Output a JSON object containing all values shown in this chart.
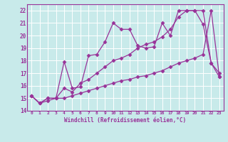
{
  "background_color": "#c8eaea",
  "grid_color": "#b0d8d8",
  "line_color": "#993399",
  "xlabel": "Windchill (Refroidissement éolien,°C)",
  "xlim": [
    -0.5,
    23.5
  ],
  "ylim": [
    14,
    22.5
  ],
  "yticks": [
    14,
    15,
    16,
    17,
    18,
    19,
    20,
    21,
    22
  ],
  "xticks": [
    0,
    1,
    2,
    3,
    4,
    5,
    6,
    7,
    8,
    9,
    10,
    11,
    12,
    13,
    14,
    15,
    16,
    17,
    18,
    19,
    20,
    21,
    22,
    23
  ],
  "series1": [
    15.2,
    14.6,
    14.8,
    15.0,
    17.9,
    15.8,
    15.9,
    18.4,
    18.5,
    19.5,
    21.0,
    20.5,
    20.5,
    19.2,
    19.0,
    19.1,
    21.0,
    20.0,
    22.0,
    22.0,
    22.0,
    20.9,
    17.8,
    17.0
  ],
  "series2": [
    15.2,
    14.6,
    15.0,
    15.0,
    15.8,
    15.5,
    16.2,
    16.5,
    17.0,
    17.5,
    18.0,
    18.2,
    18.5,
    19.0,
    19.3,
    19.5,
    19.9,
    20.5,
    21.5,
    22.0,
    22.0,
    22.0,
    17.8,
    16.7
  ],
  "series3": [
    15.2,
    14.6,
    15.0,
    15.0,
    15.0,
    15.2,
    15.4,
    15.6,
    15.8,
    16.0,
    16.2,
    16.4,
    16.5,
    16.7,
    16.8,
    17.0,
    17.2,
    17.5,
    17.8,
    18.0,
    18.2,
    18.5,
    22.0,
    16.7
  ]
}
